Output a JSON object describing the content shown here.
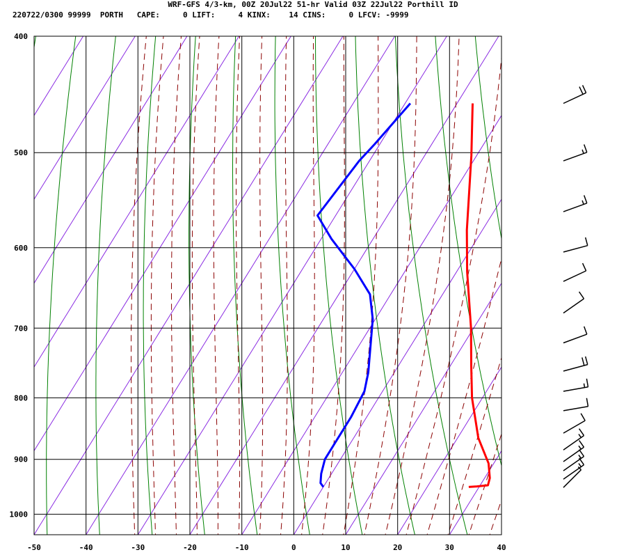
{
  "header": {
    "line1": "WRF-GFS 4/3-km, 00Z 20Jul22 51-hr Valid 03Z 22Jul22 Porthill ID",
    "line2": "220722/0300 99999  PORTH   CAPE:     0 LIFT:     4 KINX:    14 CINS:     0 LFCV: -9999"
  },
  "colors": {
    "temperature": "#ff0000",
    "dewpoint": "#0000ff",
    "dry_adiabat": "#008000",
    "moist_adiabat": "#8b0000",
    "isotherm_skewed": "#8a2be2",
    "grid": "#000000"
  },
  "chart_data": {
    "type": "line",
    "title": "",
    "xlabel": "",
    "ylabel": "",
    "xlim": [
      -50,
      40
    ],
    "ylim": [
      1040,
      400
    ],
    "y_scale": "log-pressure",
    "grid": true,
    "x_ticks": [
      -50,
      -40,
      -30,
      -20,
      -10,
      0,
      10,
      20,
      30,
      40
    ],
    "y_ticks": [
      400,
      500,
      600,
      700,
      800,
      900,
      1000
    ],
    "series": [
      {
        "color": "#ff0000",
        "points": [
          {
            "x": -17,
            "y": 455
          },
          {
            "x": -11,
            "y": 503
          },
          {
            "x": -3,
            "y": 580
          },
          {
            "x": 2,
            "y": 628
          },
          {
            "x": 9.5,
            "y": 700
          },
          {
            "x": 14,
            "y": 752
          },
          {
            "x": 18,
            "y": 800
          },
          {
            "x": 24,
            "y": 864
          },
          {
            "x": 29,
            "y": 907
          },
          {
            "x": 31,
            "y": 933
          },
          {
            "x": 31.5,
            "y": 946
          },
          {
            "x": 29.5,
            "y": 948
          },
          {
            "x": 28,
            "y": 949
          }
        ]
      },
      {
        "color": "#0000ff",
        "points": [
          {
            "x": -29,
            "y": 455
          },
          {
            "x": -31,
            "y": 492
          },
          {
            "x": -32,
            "y": 508
          },
          {
            "x": -33.5,
            "y": 564
          },
          {
            "x": -28,
            "y": 590
          },
          {
            "x": -20,
            "y": 625
          },
          {
            "x": -14,
            "y": 656
          },
          {
            "x": -10.5,
            "y": 688
          },
          {
            "x": -5,
            "y": 762
          },
          {
            "x": -3.5,
            "y": 790
          },
          {
            "x": -3,
            "y": 830
          },
          {
            "x": -3,
            "y": 865
          },
          {
            "x": -3,
            "y": 900
          },
          {
            "x": -2,
            "y": 925
          },
          {
            "x": -1,
            "y": 942
          },
          {
            "x": 0,
            "y": 949
          }
        ]
      }
    ],
    "wind_barbs": [
      {
        "p": 455,
        "dir": 245,
        "speed": 20
      },
      {
        "p": 508,
        "dir": 250,
        "speed": 15
      },
      {
        "p": 560,
        "dir": 250,
        "speed": 15
      },
      {
        "p": 605,
        "dir": 255,
        "speed": 10
      },
      {
        "p": 640,
        "dir": 245,
        "speed": 10
      },
      {
        "p": 680,
        "dir": 235,
        "speed": 10
      },
      {
        "p": 720,
        "dir": 250,
        "speed": 10
      },
      {
        "p": 760,
        "dir": 255,
        "speed": 20
      },
      {
        "p": 790,
        "dir": 260,
        "speed": 15
      },
      {
        "p": 820,
        "dir": 260,
        "speed": 10
      },
      {
        "p": 856,
        "dir": 240,
        "speed": 10
      },
      {
        "p": 884,
        "dir": 235,
        "speed": 15
      },
      {
        "p": 904,
        "dir": 235,
        "speed": 15
      },
      {
        "p": 920,
        "dir": 235,
        "speed": 15
      },
      {
        "p": 935,
        "dir": 235,
        "speed": 15
      },
      {
        "p": 950,
        "dir": 225,
        "speed": 5
      }
    ]
  }
}
